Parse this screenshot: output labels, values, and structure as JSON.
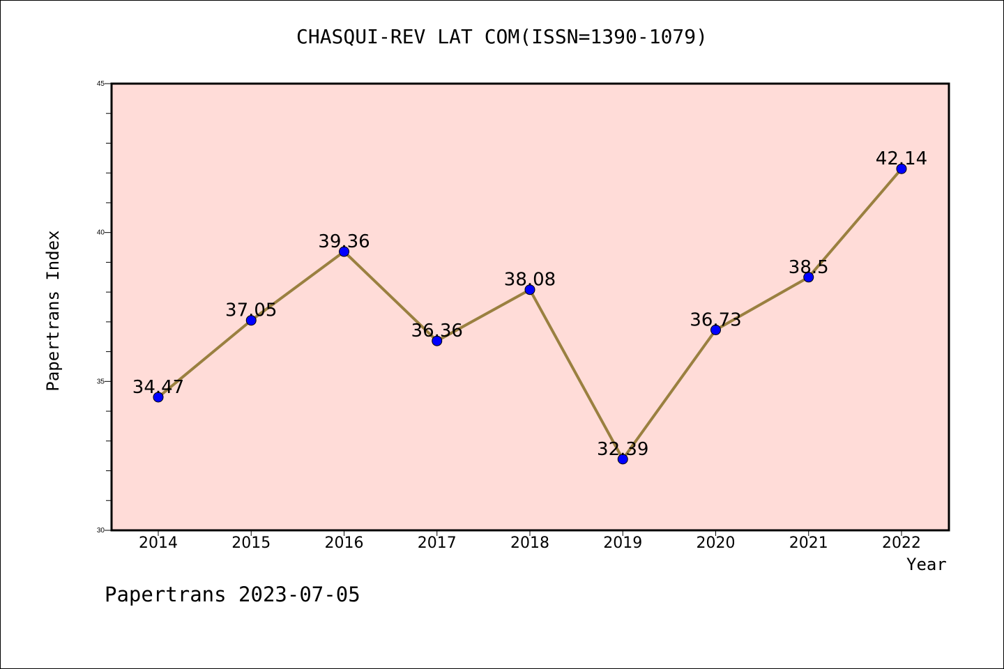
{
  "chart_data": {
    "type": "line",
    "title": "CHASQUI-REV LAT COM(ISSN=1390-1079)",
    "xlabel": "Year",
    "ylabel": "Papertrans Index",
    "x": [
      "2014",
      "2015",
      "2016",
      "2017",
      "2018",
      "2019",
      "2020",
      "2021",
      "2022"
    ],
    "series": [
      {
        "values": [
          34.47,
          37.05,
          39.36,
          36.36,
          38.08,
          32.39,
          36.73,
          38.5,
          42.14
        ],
        "labels": [
          "34.47",
          "37.05",
          "39.36",
          "36.36",
          "38.08",
          "32.39",
          "36.73",
          "38.5",
          "42.14"
        ]
      }
    ],
    "ylim": [
      30,
      45
    ],
    "yticks": [
      "30",
      "35",
      "40",
      "45"
    ],
    "grid": false,
    "colors": {
      "plot_background": "#ffdcd8",
      "line": "#9a8040",
      "marker": "#0000ff"
    }
  },
  "footer": "Papertrans 2023-07-05"
}
